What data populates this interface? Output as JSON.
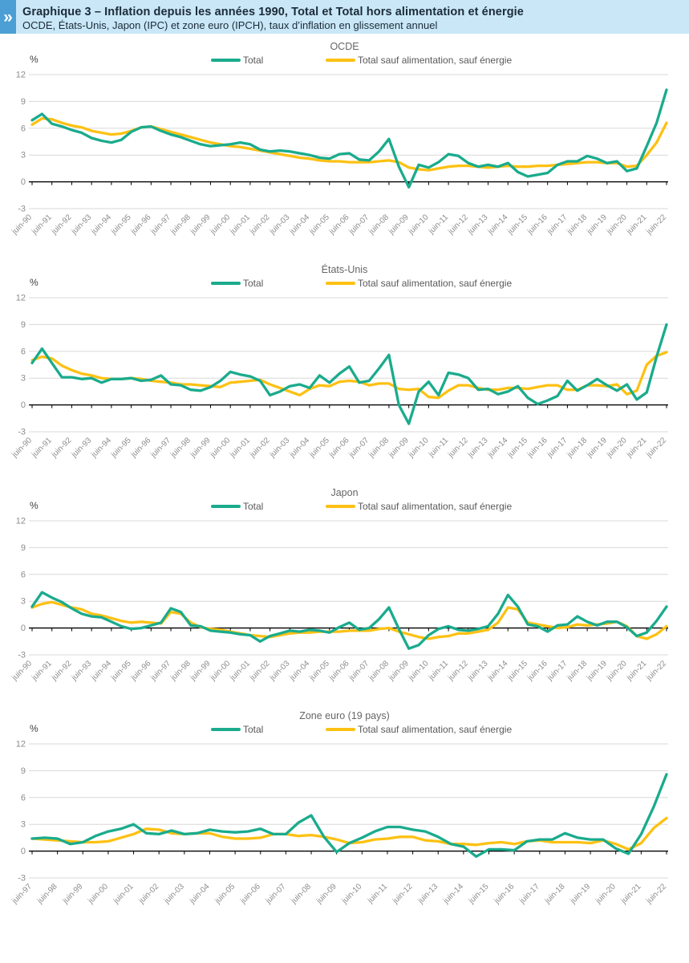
{
  "header": {
    "logo_glyph": "»",
    "title": "Graphique 3 – Inflation depuis les années 1990, Total et Total hors alimentation et énergie",
    "subtitle": "OCDE, États-Unis, Japon (IPC) et zone euro (IPCH), taux d’inflation en glissement annuel",
    "bar_bg": "#c9e7f7",
    "logo_bg": "#4b9fd4"
  },
  "legend": {
    "total": "Total",
    "core": "Total sauf alimentation, sauf énergie"
  },
  "axis": {
    "unit": "%",
    "ymin": -3,
    "ymax": 12,
    "yticks": [
      12,
      9,
      6,
      3,
      0,
      -3
    ]
  },
  "colors": {
    "total": "#1aab8d",
    "core": "#fdc113",
    "grid": "#d8d8d8",
    "axis": "#000000",
    "tick_label": "#8c8c8c"
  },
  "chart_data": [
    {
      "type": "line",
      "title": "OCDE",
      "ylabel": "%",
      "ylim": [
        -3,
        12
      ],
      "x_labels": [
        "juin-90",
        "juin-91",
        "juin-92",
        "juin-93",
        "juin-94",
        "juin-95",
        "juin-96",
        "juin-97",
        "juin-98",
        "juin-99",
        "juin-00",
        "juin-01",
        "juin-02",
        "juin-03",
        "juin-04",
        "juin-05",
        "juin-06",
        "juin-07",
        "juin-08",
        "juin-09",
        "juin-10",
        "juin-11",
        "juin-12",
        "juin-13",
        "juin-14",
        "juin-15",
        "juin-16",
        "juin-17",
        "juin-18",
        "juin-19",
        "juin-20",
        "juin-21",
        "juin-22"
      ],
      "sampling": "semi-annual from juin-1990 to juin-2022",
      "series": [
        {
          "name": "Total",
          "color_key": "total",
          "values": [
            6.9,
            7.6,
            6.5,
            6.2,
            5.8,
            5.5,
            4.9,
            4.6,
            4.4,
            4.7,
            5.6,
            6.1,
            6.2,
            5.7,
            5.3,
            5.0,
            4.6,
            4.2,
            4.0,
            4.1,
            4.2,
            4.4,
            4.2,
            3.6,
            3.4,
            3.5,
            3.4,
            3.2,
            3.0,
            2.7,
            2.6,
            3.1,
            3.2,
            2.5,
            2.4,
            3.4,
            4.8,
            1.7,
            -0.6,
            1.9,
            1.6,
            2.2,
            3.1,
            2.9,
            2.1,
            1.7,
            1.9,
            1.7,
            2.1,
            1.1,
            0.6,
            0.8,
            1.0,
            1.9,
            2.3,
            2.3,
            2.9,
            2.6,
            2.1,
            2.3,
            1.2,
            1.5,
            4.0,
            6.6,
            10.3
          ]
        },
        {
          "name": "Total sauf alimentation, sauf énergie",
          "color_key": "core",
          "values": [
            6.4,
            7.1,
            7.0,
            6.6,
            6.3,
            6.1,
            5.7,
            5.5,
            5.3,
            5.4,
            5.7,
            6.1,
            6.2,
            5.9,
            5.6,
            5.3,
            5.0,
            4.7,
            4.4,
            4.2,
            4.0,
            3.9,
            3.7,
            3.5,
            3.3,
            3.1,
            2.9,
            2.7,
            2.6,
            2.4,
            2.3,
            2.3,
            2.2,
            2.2,
            2.2,
            2.3,
            2.4,
            2.2,
            1.6,
            1.4,
            1.3,
            1.5,
            1.7,
            1.8,
            1.8,
            1.7,
            1.6,
            1.7,
            1.8,
            1.7,
            1.7,
            1.8,
            1.8,
            1.9,
            2.0,
            2.1,
            2.2,
            2.2,
            2.1,
            2.1,
            1.7,
            1.8,
            3.0,
            4.4,
            6.6
          ]
        }
      ]
    },
    {
      "type": "line",
      "title": "États-Unis",
      "ylabel": "%",
      "ylim": [
        -3,
        12
      ],
      "x_labels": [
        "juin-90",
        "juin-91",
        "juin-92",
        "juin-93",
        "juin-94",
        "juin-95",
        "juin-96",
        "juin-97",
        "juin-98",
        "juin-99",
        "juin-00",
        "juin-01",
        "juin-02",
        "juin-03",
        "juin-04",
        "juin-05",
        "juin-06",
        "juin-07",
        "juin-08",
        "juin-09",
        "juin-10",
        "juin-11",
        "juin-12",
        "juin-13",
        "juin-14",
        "juin-15",
        "juin-16",
        "juin-17",
        "juin-18",
        "juin-19",
        "juin-20",
        "juin-21",
        "juin-22"
      ],
      "sampling": "semi-annual from juin-1990 to juin-2022",
      "series": [
        {
          "name": "Total",
          "color_key": "total",
          "values": [
            4.7,
            6.3,
            4.7,
            3.1,
            3.1,
            2.9,
            3.0,
            2.5,
            2.9,
            2.9,
            3.0,
            2.7,
            2.8,
            3.3,
            2.3,
            2.2,
            1.7,
            1.6,
            2.0,
            2.7,
            3.7,
            3.4,
            3.2,
            2.7,
            1.1,
            1.5,
            2.1,
            2.3,
            1.9,
            3.3,
            2.5,
            3.5,
            4.3,
            2.5,
            2.7,
            4.1,
            5.6,
            0.0,
            -2.1,
            1.5,
            2.6,
            1.1,
            3.6,
            3.4,
            3.0,
            1.7,
            1.8,
            1.2,
            1.5,
            2.1,
            0.8,
            0.1,
            0.5,
            1.0,
            2.7,
            1.6,
            2.2,
            2.9,
            2.2,
            1.6,
            2.3,
            0.6,
            1.4,
            5.4,
            9.0
          ]
        },
        {
          "name": "Total sauf alimentation, sauf énergie",
          "color_key": "core",
          "values": [
            5.0,
            5.4,
            5.2,
            4.4,
            3.9,
            3.5,
            3.3,
            3.0,
            2.9,
            2.9,
            3.0,
            2.9,
            2.7,
            2.6,
            2.5,
            2.3,
            2.3,
            2.2,
            2.1,
            2.0,
            2.5,
            2.6,
            2.7,
            2.8,
            2.3,
            1.9,
            1.5,
            1.1,
            1.8,
            2.2,
            2.1,
            2.6,
            2.7,
            2.6,
            2.2,
            2.4,
            2.4,
            1.8,
            1.7,
            1.8,
            0.9,
            0.8,
            1.6,
            2.2,
            2.2,
            1.9,
            1.7,
            1.7,
            1.9,
            1.9,
            1.8,
            2.0,
            2.2,
            2.2,
            1.7,
            1.7,
            2.2,
            2.2,
            2.1,
            2.3,
            1.2,
            1.6,
            4.5,
            5.5,
            5.9
          ]
        }
      ]
    },
    {
      "type": "line",
      "title": "Japon",
      "ylabel": "%",
      "ylim": [
        -3,
        12
      ],
      "x_labels": [
        "juin-90",
        "juin-91",
        "juin-92",
        "juin-93",
        "juin-94",
        "juin-95",
        "juin-96",
        "juin-97",
        "juin-98",
        "juin-99",
        "juin-00",
        "juin-01",
        "juin-02",
        "juin-03",
        "juin-04",
        "juin-05",
        "juin-06",
        "juin-07",
        "juin-08",
        "juin-09",
        "juin-10",
        "juin-11",
        "juin-12",
        "juin-13",
        "juin-14",
        "juin-15",
        "juin-16",
        "juin-17",
        "juin-18",
        "juin-19",
        "juin-20",
        "juin-21",
        "juin-22"
      ],
      "sampling": "semi-annual from juin-1990 to juin-2022",
      "series": [
        {
          "name": "Total",
          "color_key": "total",
          "values": [
            2.4,
            4.0,
            3.4,
            2.9,
            2.2,
            1.6,
            1.3,
            1.2,
            0.7,
            0.2,
            -0.1,
            0.0,
            0.3,
            0.6,
            2.2,
            1.8,
            0.3,
            0.2,
            -0.3,
            -0.4,
            -0.5,
            -0.7,
            -0.8,
            -1.5,
            -0.9,
            -0.6,
            -0.3,
            -0.4,
            -0.2,
            -0.3,
            -0.5,
            0.1,
            0.6,
            -0.2,
            0.0,
            1.0,
            2.3,
            -0.1,
            -2.3,
            -1.9,
            -0.8,
            -0.1,
            0.2,
            -0.2,
            -0.3,
            -0.1,
            0.2,
            1.6,
            3.7,
            2.4,
            0.4,
            0.2,
            -0.4,
            0.3,
            0.4,
            1.3,
            0.7,
            0.3,
            0.7,
            0.7,
            0.1,
            -0.9,
            -0.5,
            0.8,
            2.4
          ]
        },
        {
          "name": "Total sauf alimentation, sauf énergie",
          "color_key": "core",
          "values": [
            2.3,
            2.7,
            2.9,
            2.6,
            2.3,
            2.1,
            1.6,
            1.4,
            1.1,
            0.8,
            0.6,
            0.7,
            0.6,
            0.5,
            1.8,
            1.6,
            0.6,
            0.1,
            -0.1,
            -0.2,
            -0.4,
            -0.6,
            -0.8,
            -0.9,
            -1.0,
            -0.8,
            -0.6,
            -0.5,
            -0.5,
            -0.4,
            -0.4,
            -0.4,
            -0.3,
            -0.3,
            -0.3,
            -0.1,
            0.0,
            -0.4,
            -0.7,
            -1.0,
            -1.2,
            -1.0,
            -0.9,
            -0.6,
            -0.6,
            -0.4,
            -0.2,
            0.6,
            2.3,
            2.1,
            0.6,
            0.4,
            0.2,
            0.0,
            0.1,
            0.4,
            0.3,
            0.4,
            0.5,
            0.7,
            0.2,
            -0.9,
            -1.2,
            -0.7,
            0.2
          ]
        }
      ]
    },
    {
      "type": "line",
      "title": "Zone euro (19 pays)",
      "ylabel": "%",
      "ylim": [
        -3,
        12
      ],
      "x_labels": [
        "juin-97",
        "juin-98",
        "juin-99",
        "juin-00",
        "juin-01",
        "juin-02",
        "juin-03",
        "juin-04",
        "juin-05",
        "juin-06",
        "juin-07",
        "juin-08",
        "juin-09",
        "juin-10",
        "juin-11",
        "juin-12",
        "juin-13",
        "juin-14",
        "juin-15",
        "juin-16",
        "juin-17",
        "juin-18",
        "juin-19",
        "juin-20",
        "juin-21",
        "juin-22"
      ],
      "sampling": "semi-annual from juin-1997 to juin-2022",
      "series": [
        {
          "name": "Total",
          "color_key": "total",
          "values": [
            1.4,
            1.5,
            1.4,
            0.8,
            1.0,
            1.7,
            2.2,
            2.5,
            3.0,
            2.0,
            1.9,
            2.3,
            1.9,
            2.0,
            2.4,
            2.2,
            2.1,
            2.2,
            2.5,
            1.9,
            1.9,
            3.2,
            4.0,
            1.6,
            -0.1,
            0.9,
            1.5,
            2.2,
            2.7,
            2.7,
            2.4,
            2.2,
            1.6,
            0.8,
            0.5,
            -0.6,
            0.2,
            0.2,
            0.1,
            1.1,
            1.3,
            1.3,
            2.0,
            1.5,
            1.3,
            1.3,
            0.3,
            -0.3,
            1.9,
            5.0,
            8.6
          ]
        },
        {
          "name": "Total sauf alimentation, sauf énergie",
          "color_key": "core",
          "values": [
            1.4,
            1.3,
            1.2,
            1.1,
            1.0,
            1.0,
            1.1,
            1.5,
            1.9,
            2.5,
            2.4,
            2.0,
            1.9,
            2.0,
            2.0,
            1.6,
            1.4,
            1.4,
            1.5,
            1.9,
            1.9,
            1.7,
            1.8,
            1.6,
            1.3,
            0.9,
            1.0,
            1.3,
            1.4,
            1.6,
            1.6,
            1.2,
            1.1,
            0.8,
            0.8,
            0.7,
            0.9,
            1.0,
            0.8,
            1.1,
            1.2,
            1.0,
            1.0,
            1.0,
            0.9,
            1.2,
            0.8,
            0.2,
            0.9,
            2.6,
            3.7
          ]
        }
      ]
    }
  ]
}
